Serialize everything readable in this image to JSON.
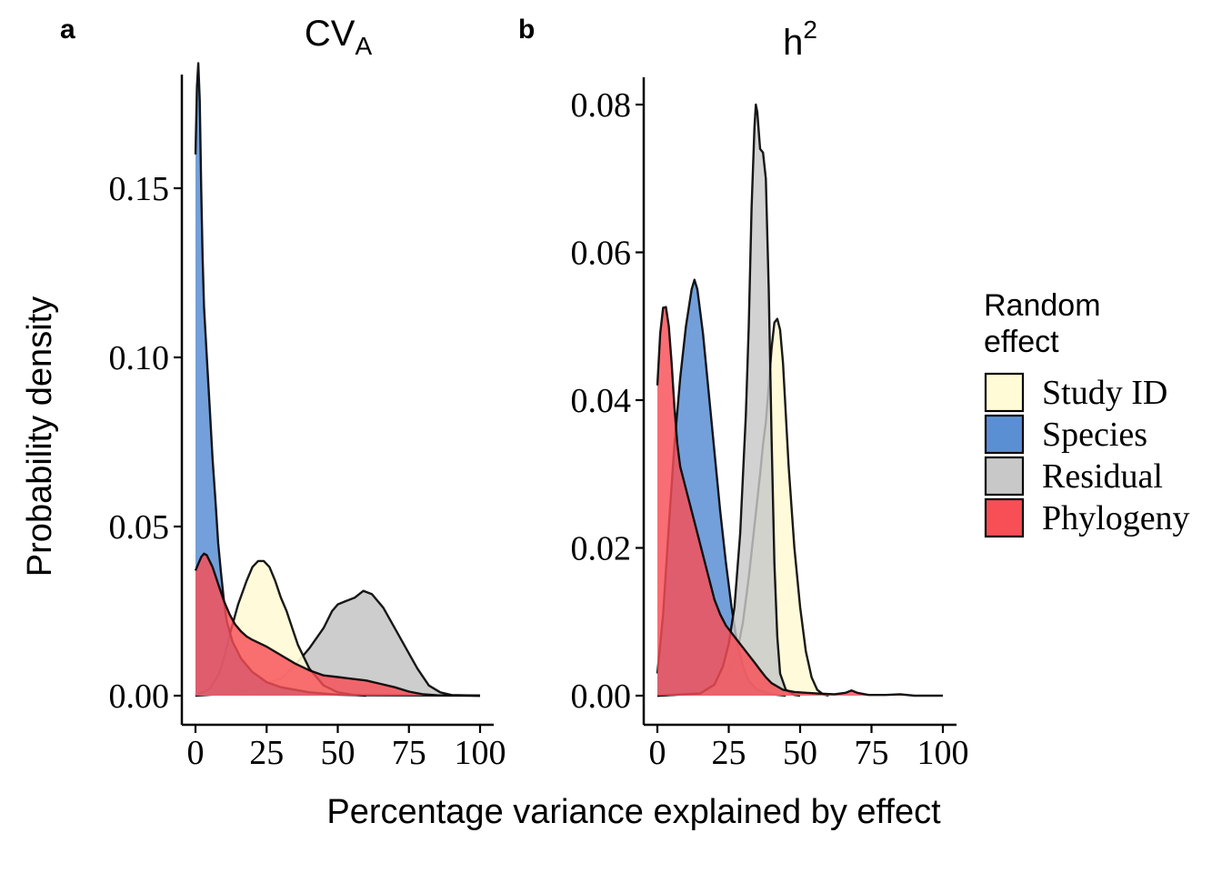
{
  "figure": {
    "ylabel": "Probability density",
    "xlabel": "Percentage variance explained by effect",
    "legend": {
      "title_line1": "Random",
      "title_line2": "effect",
      "placement": "right",
      "items": [
        {
          "label": "Study ID",
          "color": "#fffbd6"
        },
        {
          "label": "Species",
          "color": "#5b8fd4"
        },
        {
          "label": "Residual",
          "color": "#c8c8c8"
        },
        {
          "label": "Phylogeny",
          "color": "#f84e55"
        }
      ]
    }
  },
  "chart_data": [
    {
      "type": "area",
      "panel_tag": "a",
      "title_main": "CV",
      "title_sub": "A",
      "xlim": [
        0,
        100
      ],
      "ylim": [
        0,
        0.19
      ],
      "xticks": [
        0,
        25,
        50,
        75,
        100
      ],
      "xtick_labels": [
        "0",
        "25",
        "50",
        "75",
        "100"
      ],
      "yticks": [
        0,
        0.05,
        0.1,
        0.15
      ],
      "ytick_labels": [
        "0.00",
        "0.05",
        "0.10",
        "0.15"
      ],
      "series": [
        {
          "name": "Residual",
          "color": "#c8c8c8",
          "opacity": 0.9,
          "points": [
            [
              0,
              0
            ],
            [
              10,
              0.0005
            ],
            [
              20,
              0.002
            ],
            [
              30,
              0.005
            ],
            [
              35,
              0.009
            ],
            [
              40,
              0.014
            ],
            [
              45,
              0.02
            ],
            [
              48,
              0.025
            ],
            [
              50,
              0.027
            ],
            [
              53,
              0.028
            ],
            [
              56,
              0.029
            ],
            [
              59,
              0.031
            ],
            [
              62,
              0.03
            ],
            [
              66,
              0.026
            ],
            [
              70,
              0.02
            ],
            [
              74,
              0.014
            ],
            [
              78,
              0.008
            ],
            [
              82,
              0.003
            ],
            [
              86,
              0.001
            ],
            [
              90,
              0.0002
            ],
            [
              100,
              0
            ]
          ]
        },
        {
          "name": "Study ID",
          "color": "#fffbd6",
          "opacity": 0.9,
          "points": [
            [
              0,
              0
            ],
            [
              5,
              0.002
            ],
            [
              8,
              0.006
            ],
            [
              10,
              0.011
            ],
            [
              12,
              0.018
            ],
            [
              15,
              0.027
            ],
            [
              18,
              0.034
            ],
            [
              20,
              0.038
            ],
            [
              22,
              0.0398
            ],
            [
              24,
              0.0398
            ],
            [
              26,
              0.038
            ],
            [
              28,
              0.034
            ],
            [
              30,
              0.029
            ],
            [
              32,
              0.025
            ],
            [
              34,
              0.02
            ],
            [
              36,
              0.015
            ],
            [
              40,
              0.008
            ],
            [
              45,
              0.003
            ],
            [
              50,
              0.001
            ],
            [
              55,
              0.0003
            ],
            [
              60,
              0
            ]
          ]
        },
        {
          "name": "Species",
          "color": "#5b8fd4",
          "opacity": 0.85,
          "points": [
            [
              0,
              0.16
            ],
            [
              0.5,
              0.18
            ],
            [
              1,
              0.187
            ],
            [
              1.5,
              0.176
            ],
            [
              2,
              0.15
            ],
            [
              2.5,
              0.13
            ],
            [
              3,
              0.115
            ],
            [
              4,
              0.1
            ],
            [
              5,
              0.085
            ],
            [
              6,
              0.07
            ],
            [
              7,
              0.058
            ],
            [
              8,
              0.045
            ],
            [
              9,
              0.036
            ],
            [
              10,
              0.028
            ],
            [
              11,
              0.022
            ],
            [
              13,
              0.016
            ],
            [
              16,
              0.011
            ],
            [
              20,
              0.007
            ],
            [
              25,
              0.004
            ],
            [
              30,
              0.0025
            ],
            [
              40,
              0.001
            ],
            [
              50,
              0.0003
            ],
            [
              60,
              0.0001
            ],
            [
              100,
              0
            ]
          ]
        },
        {
          "name": "Phylogeny",
          "color": "#f84e55",
          "opacity": 0.82,
          "points": [
            [
              0,
              0.037
            ],
            [
              1,
              0.039
            ],
            [
              2,
              0.041
            ],
            [
              3,
              0.042
            ],
            [
              4,
              0.0415
            ],
            [
              6,
              0.038
            ],
            [
              8,
              0.033
            ],
            [
              10,
              0.028
            ],
            [
              12,
              0.024
            ],
            [
              14,
              0.021
            ],
            [
              16,
              0.019
            ],
            [
              18,
              0.0175
            ],
            [
              20,
              0.0165
            ],
            [
              25,
              0.0145
            ],
            [
              30,
              0.012
            ],
            [
              35,
              0.0095
            ],
            [
              40,
              0.0075
            ],
            [
              45,
              0.006
            ],
            [
              50,
              0.0055
            ],
            [
              55,
              0.005
            ],
            [
              60,
              0.0045
            ],
            [
              65,
              0.0035
            ],
            [
              70,
              0.0025
            ],
            [
              75,
              0.0012
            ],
            [
              80,
              0.0004
            ],
            [
              85,
              0.0001
            ],
            [
              100,
              0
            ]
          ]
        }
      ]
    },
    {
      "type": "area",
      "panel_tag": "b",
      "title_main": "h",
      "title_sup": "2",
      "xlim": [
        0,
        100
      ],
      "ylim": [
        0,
        0.084
      ],
      "xticks": [
        0,
        25,
        50,
        75,
        100
      ],
      "xtick_labels": [
        "0",
        "25",
        "50",
        "75",
        "100"
      ],
      "yticks": [
        0,
        0.02,
        0.04,
        0.06,
        0.08
      ],
      "ytick_labels": [
        "0.00",
        "0.02",
        "0.04",
        "0.06",
        "0.08"
      ],
      "series": [
        {
          "name": "Study ID",
          "color": "#fffbd6",
          "opacity": 0.9,
          "points": [
            [
              0,
              0
            ],
            [
              15,
              0.0003
            ],
            [
              20,
              0.001
            ],
            [
              25,
              0.003
            ],
            [
              28,
              0.006
            ],
            [
              30,
              0.01
            ],
            [
              32,
              0.016
            ],
            [
              34,
              0.023
            ],
            [
              36,
              0.03
            ],
            [
              37,
              0.034
            ],
            [
              38,
              0.037
            ],
            [
              39,
              0.042
            ],
            [
              40,
              0.047
            ],
            [
              41,
              0.0505
            ],
            [
              42,
              0.051
            ],
            [
              43,
              0.0495
            ],
            [
              44,
              0.045
            ],
            [
              45,
              0.038
            ],
            [
              46,
              0.031
            ],
            [
              48,
              0.02
            ],
            [
              50,
              0.012
            ],
            [
              52,
              0.006
            ],
            [
              54,
              0.0025
            ],
            [
              56,
              0.0008
            ],
            [
              58,
              0.0002
            ],
            [
              60,
              0
            ]
          ]
        },
        {
          "name": "Species",
          "color": "#5b8fd4",
          "opacity": 0.85,
          "points": [
            [
              0,
              0.003
            ],
            [
              2,
              0.011
            ],
            [
              4,
              0.023
            ],
            [
              6,
              0.034
            ],
            [
              8,
              0.043
            ],
            [
              10,
              0.05
            ],
            [
              12,
              0.055
            ],
            [
              13,
              0.0563
            ],
            [
              14,
              0.055
            ],
            [
              16,
              0.049
            ],
            [
              18,
              0.041
            ],
            [
              20,
              0.033
            ],
            [
              22,
              0.025
            ],
            [
              24,
              0.018
            ],
            [
              26,
              0.012
            ],
            [
              28,
              0.007
            ],
            [
              30,
              0.004
            ],
            [
              32,
              0.002
            ],
            [
              35,
              0.0008
            ],
            [
              40,
              0.0002
            ],
            [
              45,
              0
            ]
          ]
        },
        {
          "name": "Residual",
          "color": "#c8c8c8",
          "opacity": 0.82,
          "points": [
            [
              0,
              0
            ],
            [
              15,
              0.0003
            ],
            [
              20,
              0.0015
            ],
            [
              23,
              0.004
            ],
            [
              25,
              0.007
            ],
            [
              27,
              0.012
            ],
            [
              29,
              0.022
            ],
            [
              31,
              0.038
            ],
            [
              32,
              0.05
            ],
            [
              33,
              0.066
            ],
            [
              34,
              0.077
            ],
            [
              34.5,
              0.08
            ],
            [
              35,
              0.079
            ],
            [
              36,
              0.074
            ],
            [
              37,
              0.0735
            ],
            [
              38,
              0.07
            ],
            [
              39,
              0.055
            ],
            [
              40,
              0.035
            ],
            [
              41,
              0.018
            ],
            [
              42,
              0.008
            ],
            [
              43,
              0.003
            ],
            [
              45,
              0.0008
            ],
            [
              48,
              0.0001
            ],
            [
              50,
              0
            ]
          ]
        },
        {
          "name": "Phylogeny",
          "color": "#f84e55",
          "opacity": 0.82,
          "points": [
            [
              0,
              0.042
            ],
            [
              1,
              0.049
            ],
            [
              2,
              0.0525
            ],
            [
              3,
              0.0526
            ],
            [
              4,
              0.05
            ],
            [
              5,
              0.045
            ],
            [
              6,
              0.039
            ],
            [
              7,
              0.034
            ],
            [
              8,
              0.031
            ],
            [
              10,
              0.028
            ],
            [
              12,
              0.025
            ],
            [
              14,
              0.022
            ],
            [
              16,
              0.019
            ],
            [
              18,
              0.016
            ],
            [
              20,
              0.013
            ],
            [
              22,
              0.011
            ],
            [
              24,
              0.0095
            ],
            [
              26,
              0.0085
            ],
            [
              28,
              0.0075
            ],
            [
              30,
              0.0065
            ],
            [
              32,
              0.0055
            ],
            [
              34,
              0.0045
            ],
            [
              36,
              0.0035
            ],
            [
              38,
              0.0025
            ],
            [
              40,
              0.0017
            ],
            [
              44,
              0.0008
            ],
            [
              48,
              0.0005
            ],
            [
              52,
              0.0004
            ],
            [
              56,
              0.0003
            ],
            [
              62,
              0.0002
            ],
            [
              66,
              0.0004
            ],
            [
              68,
              0.0007
            ],
            [
              70,
              0.0004
            ],
            [
              74,
              0.0001
            ],
            [
              80,
              0.0001
            ],
            [
              85,
              0.0002
            ],
            [
              90,
              0
            ],
            [
              100,
              0
            ]
          ]
        }
      ]
    }
  ]
}
